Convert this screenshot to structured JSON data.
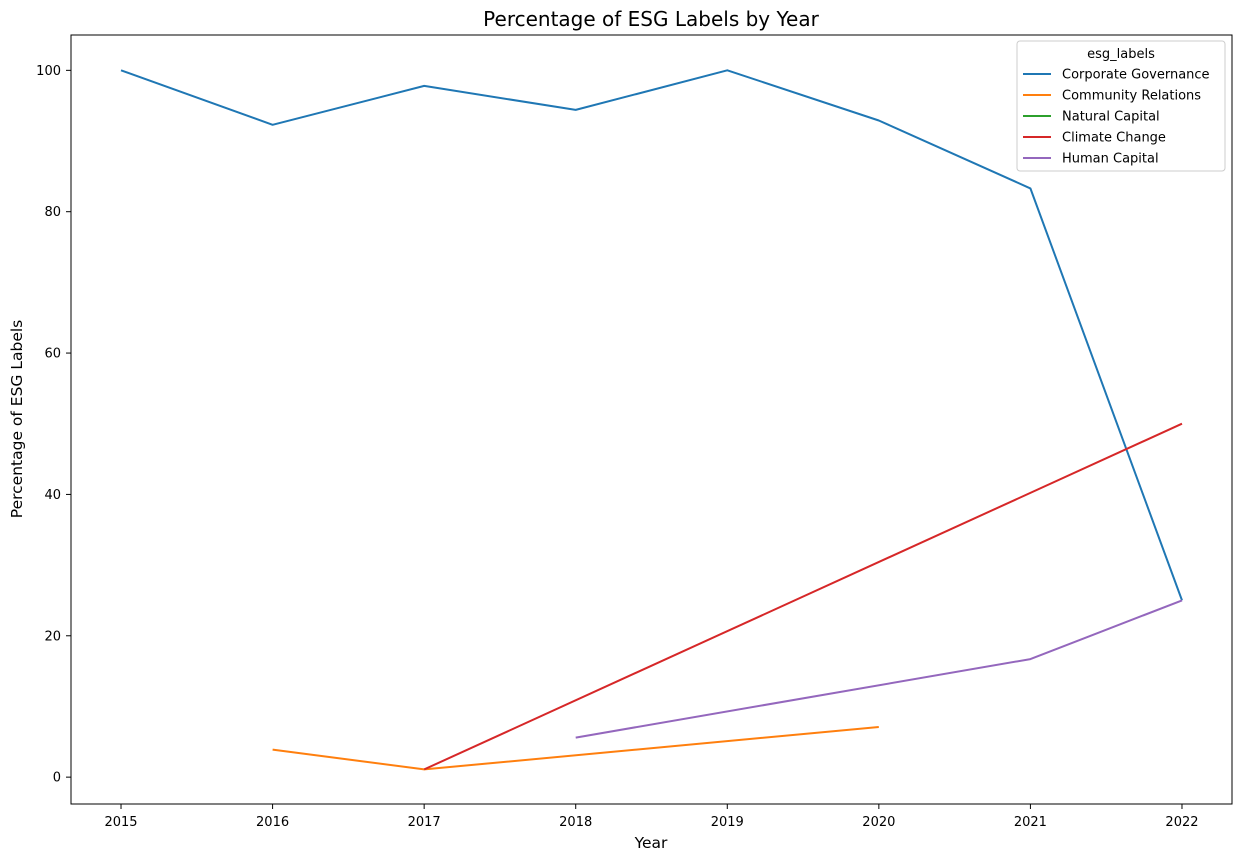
{
  "chart_data": {
    "type": "line",
    "title": "Percentage of ESG Labels by Year",
    "xlabel": "Year",
    "ylabel": "Percentage of ESG Labels",
    "xlim": [
      2014.67,
      2022.33
    ],
    "ylim": [
      -3.8,
      105
    ],
    "x_ticks": [
      "2015",
      "2016",
      "2017",
      "2018",
      "2019",
      "2020",
      "2021",
      "2022"
    ],
    "y_ticks": [
      "0",
      "20",
      "40",
      "60",
      "80",
      "100"
    ],
    "grid": false,
    "legend_title": "esg_labels",
    "legend_position": "top-right",
    "series": [
      {
        "name": "Corporate Governance",
        "color": "#1f77b4",
        "points": [
          [
            2015,
            100
          ],
          [
            2016,
            92.3
          ],
          [
            2017,
            97.8
          ],
          [
            2018,
            94.4
          ],
          [
            2019,
            100
          ],
          [
            2020,
            92.9
          ],
          [
            2021,
            83.3
          ],
          [
            2022,
            25
          ]
        ]
      },
      {
        "name": "Community Relations",
        "color": "#ff7f0e",
        "points": [
          [
            2016,
            3.9
          ],
          [
            2017,
            1.1
          ],
          [
            2020,
            7.1
          ]
        ]
      },
      {
        "name": "Natural Capital",
        "color": "#2ca02c",
        "points": []
      },
      {
        "name": "Climate Change",
        "color": "#d62728",
        "points": [
          [
            2017,
            1.1
          ],
          [
            2022,
            50
          ]
        ]
      },
      {
        "name": "Human Capital",
        "color": "#9467bd",
        "points": [
          [
            2018,
            5.6
          ],
          [
            2021,
            16.7
          ],
          [
            2022,
            25
          ]
        ]
      }
    ]
  }
}
